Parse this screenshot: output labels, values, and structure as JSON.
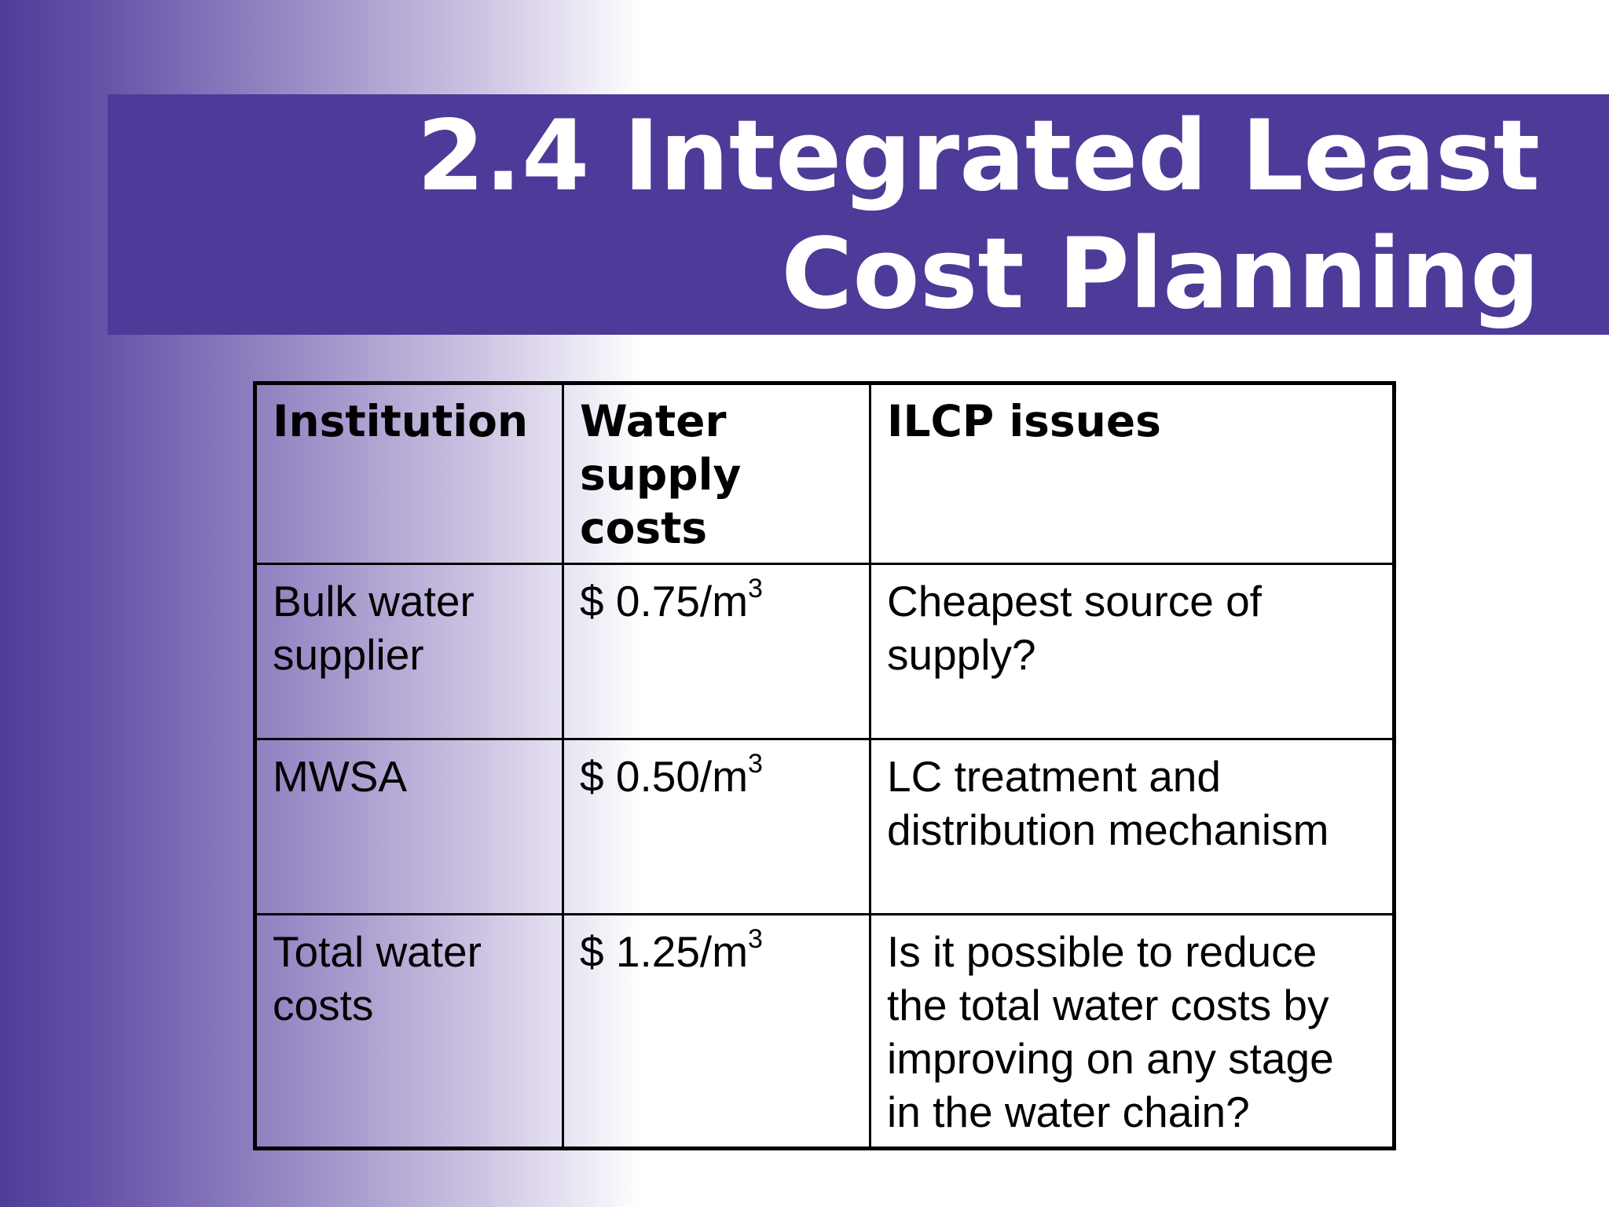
{
  "slide": {
    "title": "2.4 Integrated Least\nCost Planning"
  },
  "table": {
    "headers": [
      "Institution",
      "Water supply costs",
      "ILCP issues"
    ],
    "rows": [
      {
        "institution": "Bulk water supplier",
        "cost": "$ 0.75/m",
        "cost_exponent": "3",
        "issue": "Cheapest source of supply?"
      },
      {
        "institution": "MWSA",
        "cost": "$ 0.50/m",
        "cost_exponent": "3",
        "issue": "LC treatment and distribution mechanism"
      },
      {
        "institution": "Total water costs",
        "cost": "$ 1.25/m",
        "cost_exponent": "3",
        "issue": "Is it possible to reduce the total water costs by improving on any stage in the water chain?"
      }
    ]
  },
  "colors": {
    "title_band": "#4e3a98",
    "title_text": "#ffffff",
    "gradient_dark": "#4e3c98",
    "table_border": "#000000"
  }
}
